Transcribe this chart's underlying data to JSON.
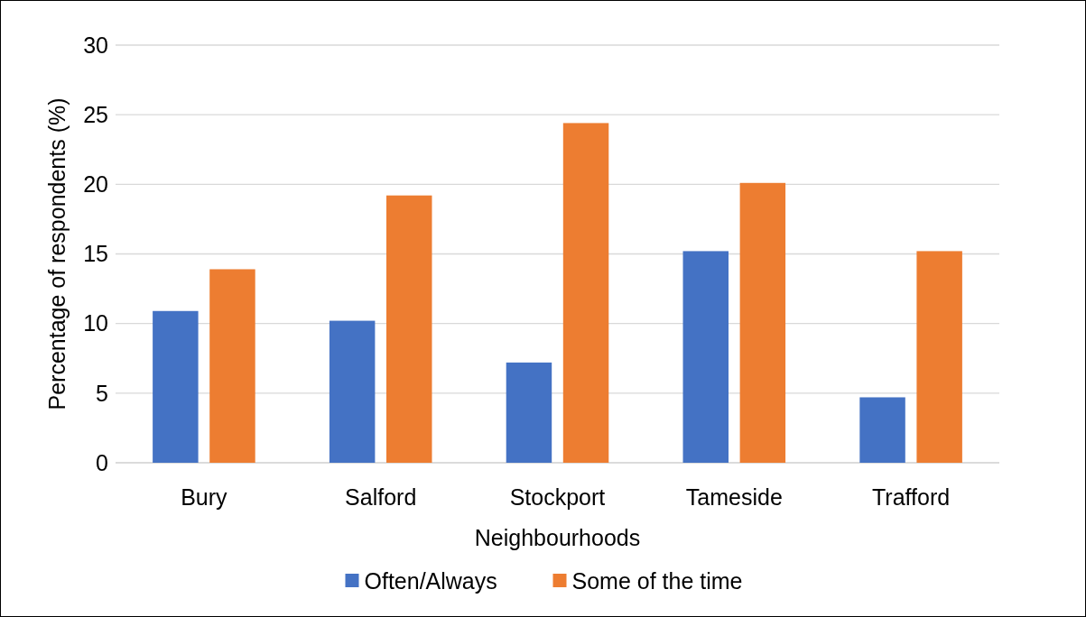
{
  "chart_data": {
    "type": "bar",
    "xlabel": "Neighbourhoods",
    "ylabel": "Percentage of respondents (%)",
    "categories": [
      "Bury",
      "Salford",
      "Stockport",
      "Tameside",
      "Trafford"
    ],
    "series": [
      {
        "name": "Often/Always",
        "color": "#4472c4",
        "values": [
          10.9,
          10.2,
          7.2,
          15.2,
          4.7
        ]
      },
      {
        "name": "Some of the time",
        "color": "#ed7d31",
        "values": [
          13.9,
          19.2,
          24.4,
          20.1,
          15.2
        ]
      }
    ],
    "ylim": [
      0,
      30
    ],
    "yticks": [
      0,
      5,
      10,
      15,
      20,
      25,
      30
    ],
    "grid": "y",
    "legend": "bottom"
  }
}
